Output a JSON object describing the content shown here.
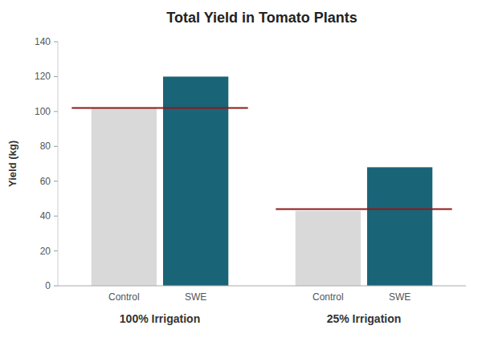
{
  "chart_data": {
    "type": "bar",
    "title": "Total Yield in Tomato Plants",
    "ylabel": "Yield (kg)",
    "categories": [
      "100% Irrigation",
      "25% Irrigation"
    ],
    "series": [
      {
        "name": "Control",
        "color": "#d9d9d9",
        "values": [
          102,
          43
        ]
      },
      {
        "name": "SWE",
        "color": "#1a6478",
        "values": [
          120,
          68
        ]
      }
    ],
    "reference_lines": {
      "values": [
        102,
        44
      ],
      "color": "#8b1a1a"
    },
    "ylim": [
      0,
      140
    ],
    "yticks": [
      0,
      20,
      40,
      60,
      80,
      100,
      120,
      140
    ],
    "grid": false
  }
}
